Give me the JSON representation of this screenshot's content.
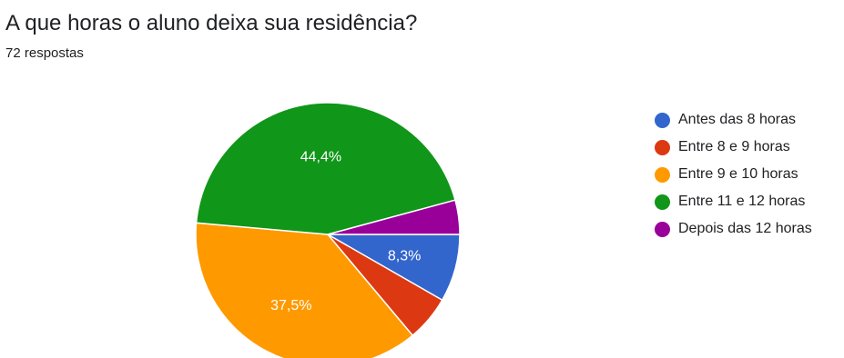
{
  "header": {
    "title": "A que horas o aluno deixa sua residência?",
    "subtitle": "72 respostas"
  },
  "chart_data": {
    "type": "pie",
    "title": "A que horas o aluno deixa sua residência?",
    "subtitle": "72 respostas",
    "legend_position": "right",
    "series": [
      {
        "name": "Antes das 8 horas",
        "value": 8.3,
        "label": "8,3%",
        "color": "#3366cc"
      },
      {
        "name": "Entre 8 e 9 horas",
        "value": 5.6,
        "label": "",
        "color": "#dc3912"
      },
      {
        "name": "Entre 9 e 10 horas",
        "value": 37.5,
        "label": "37,5%",
        "color": "#ff9900"
      },
      {
        "name": "Entre 11 e 12 horas",
        "value": 44.4,
        "label": "44,4%",
        "color": "#109618"
      },
      {
        "name": "Depois das 12 horas",
        "value": 4.2,
        "label": "",
        "color": "#990099"
      }
    ]
  }
}
